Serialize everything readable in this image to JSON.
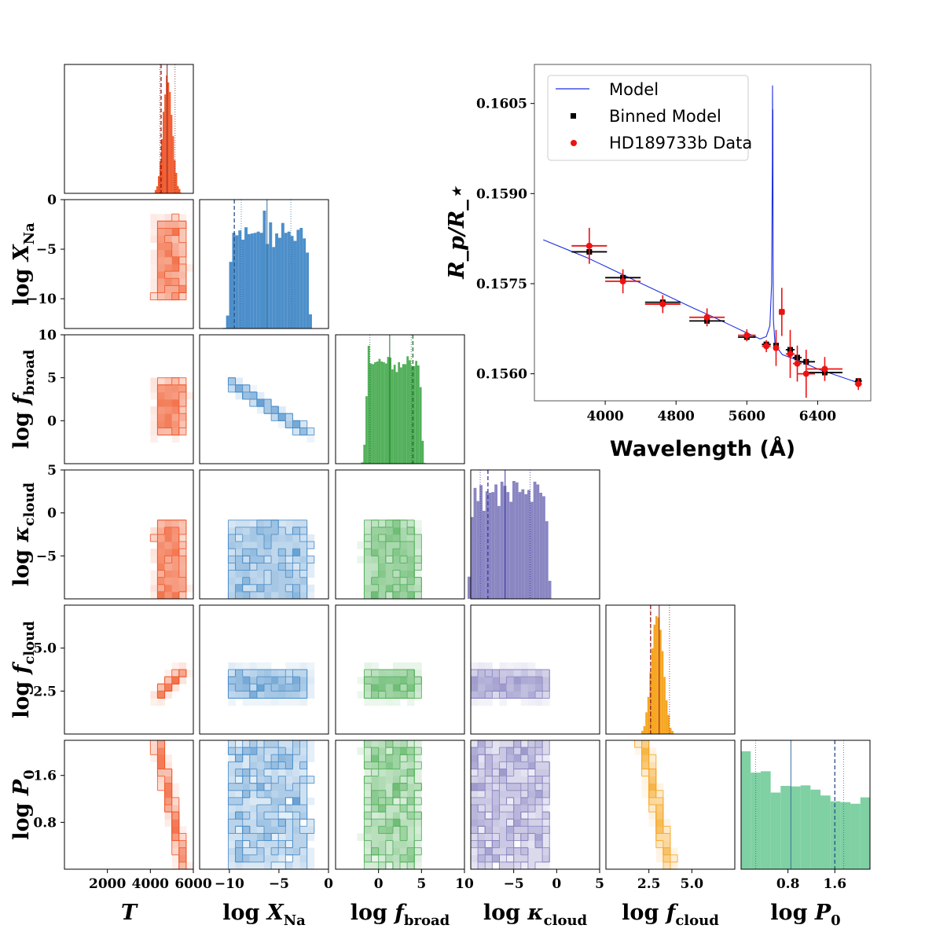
{
  "chart_data": {
    "type": "corner",
    "parameters": [
      {
        "key": "T",
        "label_main": "T",
        "label_sub": "",
        "prefix": "",
        "color": "#f0592b",
        "range": [
          0,
          6000
        ],
        "ticks": [
          2000,
          4000,
          6000
        ],
        "tick_labels": [
          "2000",
          "4000",
          "6000"
        ],
        "hist_shape": "gaussian",
        "hist_center": 4800,
        "hist_width": 350,
        "hist_bins": 30,
        "lines": {
          "p16": 4450,
          "median": 4780,
          "p84": 5150,
          "truth": 4500
        }
      },
      {
        "key": "log_X_Na",
        "label_main": "X",
        "label_sub": "Na",
        "prefix": "log ",
        "color": "#4c8fca",
        "range": [
          -13,
          0
        ],
        "ticks": [
          -10,
          -5,
          0
        ],
        "tick_labels": [
          "−10",
          "−5",
          "0"
        ],
        "hist_shape": "uniform",
        "hist_low": -10,
        "hist_high": -2,
        "hist_bins": 30,
        "lines": {
          "p16": -8.8,
          "median": -6.2,
          "p84": -3.8,
          "truth": -9.5
        }
      },
      {
        "key": "log_f_broad",
        "label_main": "f",
        "label_sub": "broad",
        "prefix": "log ",
        "color": "#52b05a",
        "range": [
          -5,
          10
        ],
        "ticks": [
          0,
          5,
          10
        ],
        "tick_labels": [
          "0",
          "5",
          "10"
        ],
        "hist_shape": "uniform",
        "hist_low": -1.5,
        "hist_high": 5,
        "hist_bins": 30,
        "lines": {
          "p16": -1.0,
          "median": 1.3,
          "p84": 3.8,
          "truth": 4.0
        }
      },
      {
        "key": "log_kappa_cloud",
        "label_main": "κ",
        "label_sub": "cloud",
        "prefix": "log ",
        "color": "#8a86c2",
        "range": [
          -10,
          5
        ],
        "ticks": [
          -5,
          0,
          5
        ],
        "tick_labels": [
          "−5",
          "0",
          "5"
        ],
        "hist_shape": "uniform",
        "hist_low": -10,
        "hist_high": -1,
        "hist_bins": 30,
        "lines": {
          "p16": -8.9,
          "median": -6.0,
          "p84": -3.1,
          "truth": -8.0
        }
      },
      {
        "key": "log_f_cloud",
        "label_main": "f",
        "label_sub": "cloud",
        "prefix": "log ",
        "color": "#f5a623",
        "range": [
          0,
          7.5
        ],
        "ticks": [
          2.5,
          5.0
        ],
        "tick_labels": [
          "2.5",
          "5.0"
        ],
        "hist_shape": "gaussian",
        "hist_center": 3.0,
        "hist_width": 0.55,
        "hist_bins": 30,
        "lines": {
          "p16": 2.6,
          "median": 3.1,
          "p84": 3.7,
          "truth": 2.6
        }
      },
      {
        "key": "log_P0",
        "label_main": "P",
        "label_sub": "0",
        "prefix": "log ",
        "color": "#7fd0a3",
        "range": [
          0,
          2.2
        ],
        "ticks": [
          0.8,
          1.6
        ],
        "tick_labels": [
          "0.8",
          "1.6"
        ],
        "hist_shape": "decreasing",
        "hist_low": 0,
        "hist_high": 2.2,
        "hist_bins": 15,
        "lines": {
          "p16": 0.25,
          "median": 0.85,
          "p84": 1.75,
          "truth": 1.6
        }
      }
    ],
    "diagonal_line_colors": {
      "quantile": "#4c8fca",
      "truth": "#3a3a3a"
    },
    "spectrum": {
      "type": "line_with_errorbars",
      "xlabel": "Wavelength (Å)",
      "ylabel": "R_p/R_⋆",
      "xlim": [
        3200,
        7000
      ],
      "ylim": [
        0.15555,
        0.16115
      ],
      "xticks": [
        4000,
        4800,
        5600,
        6400
      ],
      "xtick_labels": [
        "4000",
        "4800",
        "5600",
        "6400"
      ],
      "yticks": [
        0.156,
        0.1575,
        0.159,
        0.1605
      ],
      "ytick_labels": [
        "0.1560",
        "0.1575",
        "0.1590",
        "0.1605"
      ],
      "legend_location": "top-left",
      "series": [
        {
          "name": "Model",
          "color": "#1f2fe0",
          "x": [
            3300,
            3600,
            3800,
            4000,
            4200,
            4400,
            4600,
            4800,
            5000,
            5200,
            5400,
            5600,
            5750,
            5820,
            5860,
            5880,
            5888,
            5890,
            5892,
            5894,
            5896,
            5900,
            5920,
            5960,
            6000,
            6200,
            6400,
            6600,
            6800,
            6880
          ],
          "y": [
            0.15823,
            0.15805,
            0.15793,
            0.15779,
            0.15765,
            0.15751,
            0.15737,
            0.15723,
            0.15709,
            0.15696,
            0.15682,
            0.15668,
            0.15658,
            0.15662,
            0.1568,
            0.1575,
            0.1595,
            0.1608,
            0.1598,
            0.1604,
            0.158,
            0.1569,
            0.15646,
            0.1564,
            0.15632,
            0.15621,
            0.15608,
            0.15598,
            0.15588,
            0.15583
          ]
        },
        {
          "name": "Binned Model",
          "color": "#000000",
          "x": [
            3820,
            4200,
            4650,
            5150,
            5600,
            5820,
            5930,
            5995,
            6090,
            6170,
            6270,
            6480,
            6860
          ],
          "y": [
            0.15803,
            0.1576,
            0.15719,
            0.15688,
            0.15661,
            0.15649,
            0.15647,
            0.15703,
            0.1564,
            0.15627,
            0.1562,
            0.15602,
            0.15588
          ],
          "xerr": [
            200,
            200,
            200,
            200,
            100,
            50,
            25,
            25,
            50,
            50,
            100,
            200,
            40
          ]
        },
        {
          "name": "HD189733b Data",
          "color": "#ee1111",
          "x": [
            3820,
            4200,
            4650,
            5150,
            5600,
            5820,
            5930,
            5995,
            6090,
            6170,
            6270,
            6480,
            6860
          ],
          "y": [
            0.15813,
            0.15754,
            0.15716,
            0.15694,
            0.15664,
            0.15646,
            0.15643,
            0.15703,
            0.15633,
            0.15617,
            0.156,
            0.15608,
            0.15583
          ],
          "xerr": [
            200,
            200,
            200,
            200,
            100,
            50,
            25,
            25,
            50,
            50,
            100,
            200,
            40
          ],
          "yerr": [
            0.0003,
            0.0002,
            0.00015,
            0.00015,
            0.0001,
            0.0001,
            0.0003,
            0.0004,
            0.0004,
            0.0003,
            0.0004,
            0.0002,
            0.0001
          ]
        }
      ]
    }
  }
}
